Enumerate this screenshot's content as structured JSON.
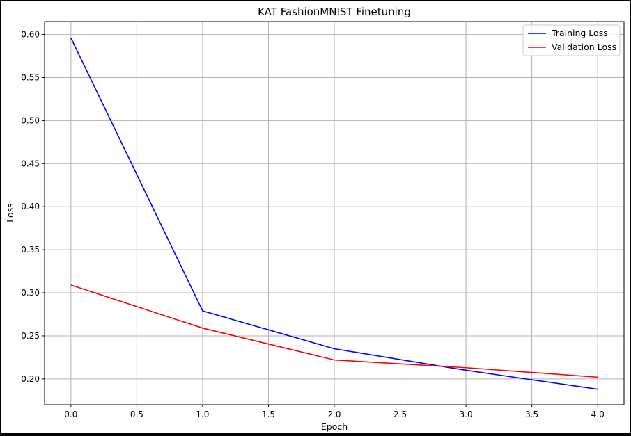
{
  "colors": {
    "background": "#ffffff",
    "frame": "#000000",
    "grid": "#b0b0b0",
    "training": "#0000ff",
    "validation": "#ff0000"
  },
  "chart_data": {
    "type": "line",
    "title": "KAT FashionMNIST Finetuning",
    "xlabel": "Epoch",
    "ylabel": "Loss",
    "x": [
      0,
      1,
      2,
      3,
      4
    ],
    "xlim": [
      -0.2,
      4.2
    ],
    "ylim": [
      0.17,
      0.615
    ],
    "xticks": [
      0.0,
      0.5,
      1.0,
      1.5,
      2.0,
      2.5,
      3.0,
      3.5,
      4.0
    ],
    "xtick_labels": [
      "0.0",
      "0.5",
      "1.0",
      "1.5",
      "2.0",
      "2.5",
      "3.0",
      "3.5",
      "4.0"
    ],
    "yticks": [
      0.2,
      0.25,
      0.3,
      0.35,
      0.4,
      0.45,
      0.5,
      0.55,
      0.6
    ],
    "ytick_labels": [
      "0.20",
      "0.25",
      "0.30",
      "0.35",
      "0.40",
      "0.45",
      "0.50",
      "0.55",
      "0.60"
    ],
    "grid": true,
    "legend_position": "top-right",
    "series": [
      {
        "name": "Training Loss",
        "color": "#0000ff",
        "values": [
          0.596,
          0.279,
          0.235,
          0.21,
          0.188
        ]
      },
      {
        "name": "Validation Loss",
        "color": "#ff0000",
        "values": [
          0.309,
          0.259,
          0.222,
          0.213,
          0.202
        ]
      }
    ]
  }
}
